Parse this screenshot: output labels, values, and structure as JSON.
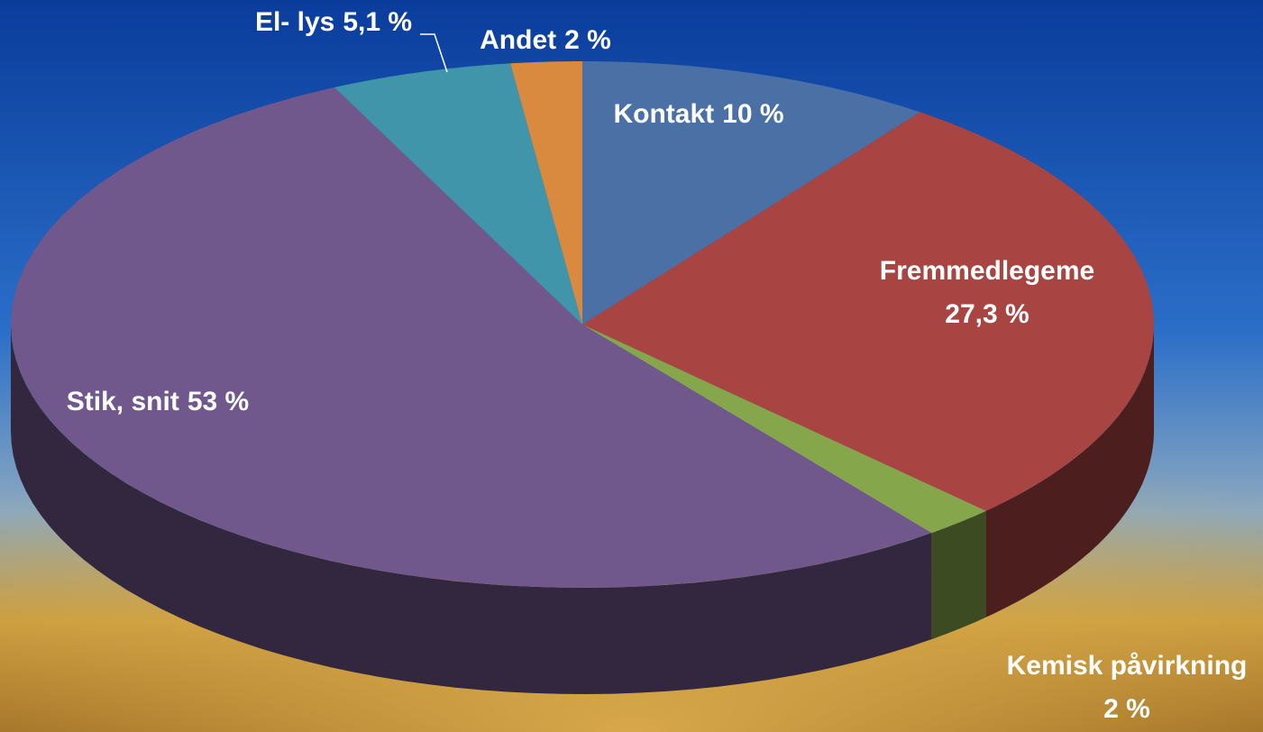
{
  "chart_data": {
    "type": "pie3d",
    "categories": [
      "Kontakt",
      "Fremmedlegeme",
      "Kemisk påvirkning",
      "Stik, snit",
      "El- lys",
      "Andet"
    ],
    "values": [
      10,
      27.3,
      2,
      53,
      5.1,
      2
    ],
    "value_labels": [
      "10 %",
      "27,3 %",
      "2 %",
      "53 %",
      "5,1 %",
      "2 %"
    ],
    "colors": [
      "#4a70a6",
      "#a84543",
      "#86a64b",
      "#70578c",
      "#4095ab",
      "#d98a3f"
    ]
  }
}
